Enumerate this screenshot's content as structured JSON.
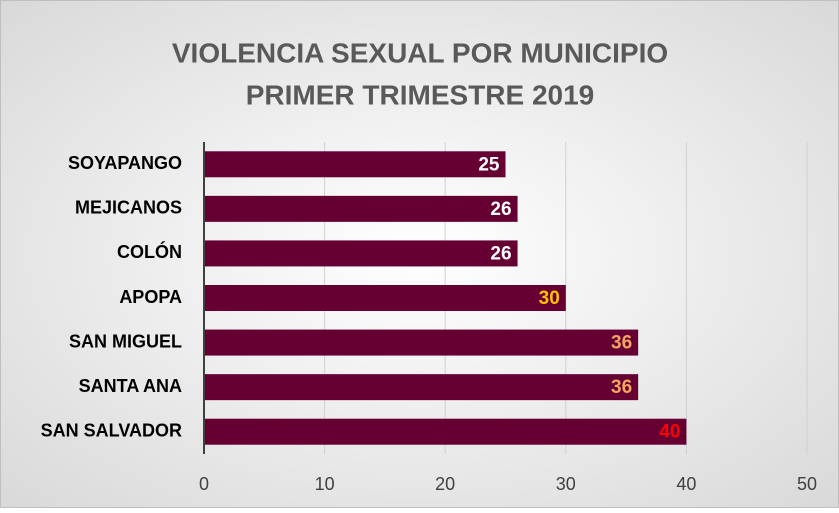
{
  "chart_data": {
    "type": "barh",
    "title": [
      "VIOLENCIA SEXUAL POR MUNICIPIO",
      "PRIMER TRIMESTRE 2019"
    ],
    "categories": [
      "SOYAPANGO",
      "MEJICANOS",
      "COLÓN",
      "APOPA",
      "SAN MIGUEL",
      "SANTA ANA",
      "SAN SALVADOR"
    ],
    "values": [
      25,
      26,
      26,
      30,
      36,
      36,
      40
    ],
    "color": "#660033",
    "label_colors": [
      "#ffffff",
      "#ffffff",
      "#ffffff",
      "#ffc000",
      "#f4a460",
      "#f4a460",
      "#ff0000"
    ],
    "xlim": [
      0,
      50
    ],
    "xticks": [
      0,
      10,
      20,
      30,
      40,
      50
    ],
    "grid": true
  }
}
